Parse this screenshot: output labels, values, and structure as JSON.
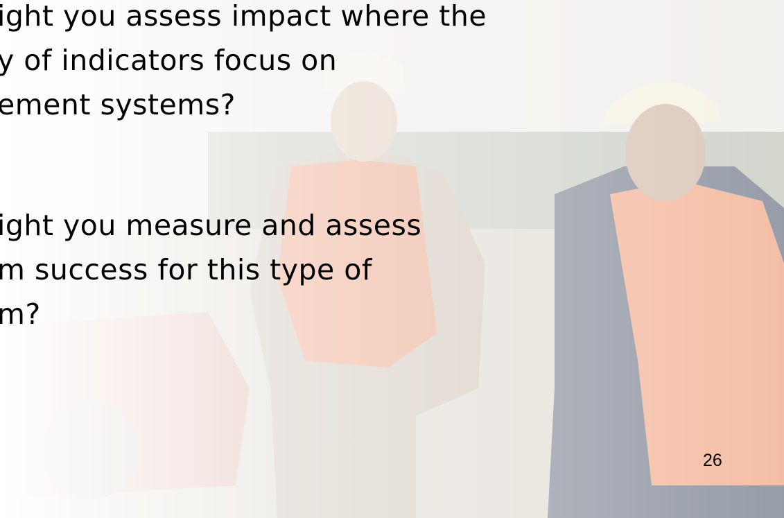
{
  "slide": {
    "paragraphs": [
      {
        "lines": [
          "ight you assess impact where the",
          "y of indicators focus on",
          "ement systems?"
        ]
      },
      {
        "lines": [
          "ight you measure and assess",
          "m success for this type of",
          "m?"
        ]
      }
    ],
    "page_number": "26"
  }
}
